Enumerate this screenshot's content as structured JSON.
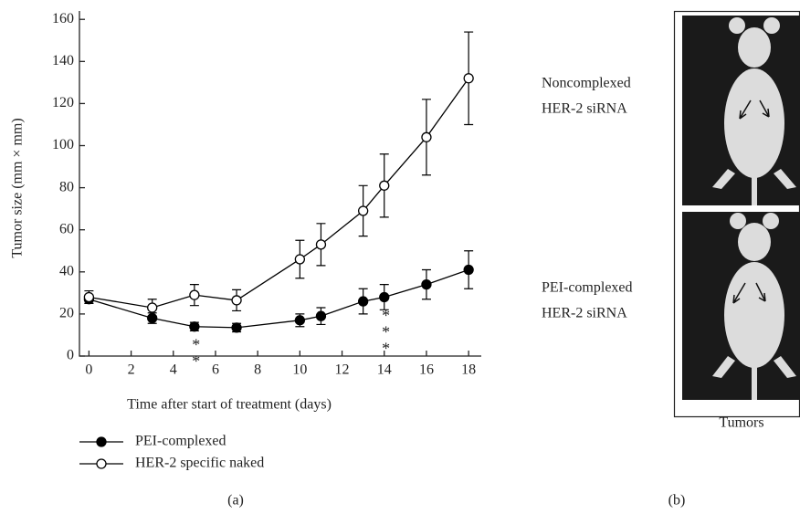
{
  "chart_data": {
    "type": "line",
    "panel_label": "(a)",
    "xlabel": "Time after start of treatment (days)",
    "ylabel": "Tumor size (mm × mm)",
    "x": [
      0,
      3,
      5,
      7,
      10,
      11,
      13,
      14,
      16,
      18
    ],
    "series": [
      {
        "name": "PEI-complexed",
        "color": "#000000",
        "fill": "#000000",
        "values": [
          27,
          18,
          14,
          13.5,
          17,
          19,
          26,
          28,
          34,
          41
        ],
        "errors": [
          2,
          2.5,
          2,
          2,
          3,
          4,
          6,
          6,
          7,
          9
        ]
      },
      {
        "name": "HER-2 specific naked",
        "color": "#000000",
        "fill": "#ffffff",
        "values": [
          28,
          23,
          29,
          26.5,
          46,
          53,
          69,
          81,
          104,
          132
        ],
        "errors": [
          3,
          4,
          5,
          5,
          9,
          10,
          12,
          15,
          18,
          22
        ]
      }
    ],
    "annotations": [
      {
        "text": "**",
        "x": 5
      },
      {
        "text": "***",
        "x": 14
      }
    ],
    "xlim": [
      -0.45,
      18.6
    ],
    "ylim": [
      0,
      164
    ],
    "xticks": [
      0,
      2,
      4,
      6,
      8,
      10,
      12,
      14,
      16,
      18
    ],
    "yticks": [
      0,
      20,
      40,
      60,
      80,
      100,
      120,
      140,
      160
    ]
  },
  "figure_b": {
    "panel_label": "(b)",
    "top_label": [
      "Noncomplexed",
      "HER-2 siRNA"
    ],
    "bottom_label": [
      "PEI-complexed",
      "HER-2 siRNA"
    ],
    "caption": "Tumors"
  }
}
